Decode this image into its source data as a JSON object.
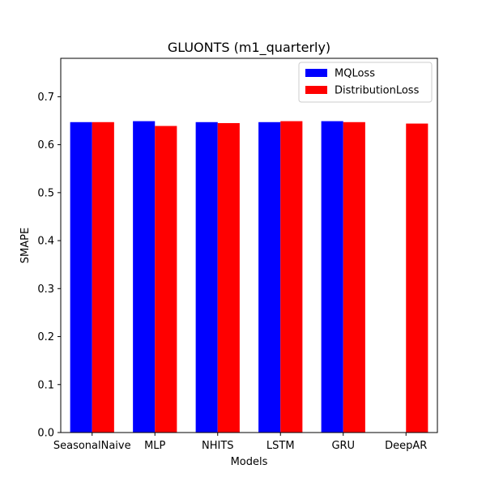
{
  "chart_data": {
    "type": "bar",
    "title": "GLUONTS (m1_quarterly)",
    "xlabel": "Models",
    "ylabel": "SMAPE",
    "categories": [
      "SeasonalNaive",
      "MLP",
      "NHITS",
      "LSTM",
      "GRU",
      "DeepAR"
    ],
    "series": [
      {
        "name": "MQLoss",
        "color": "#0000ff",
        "values": [
          0.647,
          0.649,
          0.647,
          0.647,
          0.649,
          null
        ]
      },
      {
        "name": "DistributionLoss",
        "color": "#ff0000",
        "values": [
          0.647,
          0.639,
          0.645,
          0.649,
          0.647,
          0.644
        ]
      }
    ],
    "ylim": [
      0,
      0.78
    ],
    "yticks": [
      0.0,
      0.1,
      0.2,
      0.3,
      0.4,
      0.5,
      0.6,
      0.7
    ],
    "ytick_labels": [
      "0.0",
      "0.1",
      "0.2",
      "0.3",
      "0.4",
      "0.5",
      "0.6",
      "0.7"
    ],
    "grid": false,
    "legend_position": "top-right"
  }
}
